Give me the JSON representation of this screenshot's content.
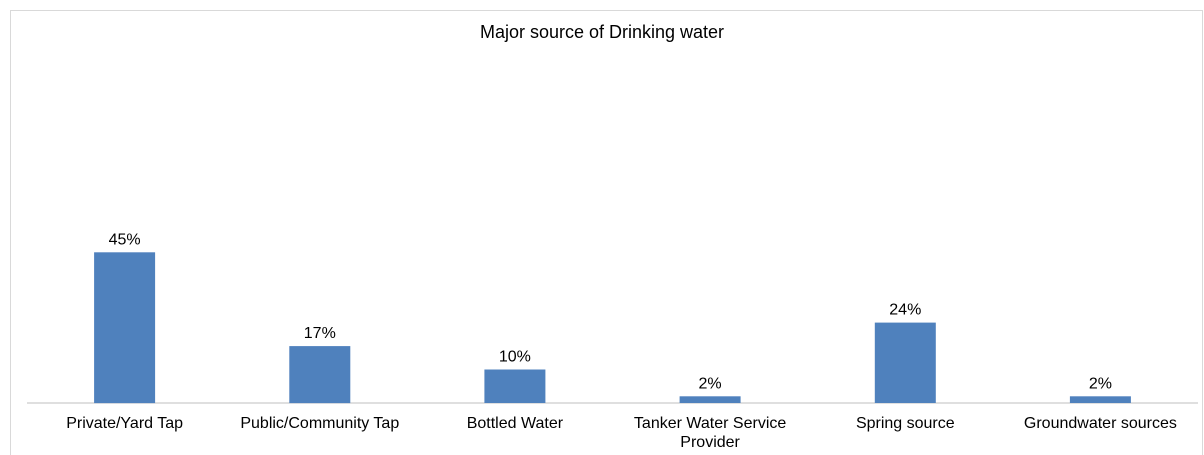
{
  "chart_data": {
    "type": "bar",
    "title": "Major source of Drinking water",
    "categories": [
      [
        "Private/Yard Tap"
      ],
      [
        "Public/Community Tap"
      ],
      [
        "Bottled Water"
      ],
      [
        "Tanker Water Service",
        "Provider"
      ],
      [
        "Spring source"
      ],
      [
        "Groundwater sources"
      ]
    ],
    "values": [
      45,
      17,
      10,
      2,
      24,
      2
    ],
    "data_labels": [
      "45%",
      "17%",
      "10%",
      "2%",
      "24%",
      "2%"
    ],
    "xlabel": "",
    "ylabel": "",
    "ylim": [
      0,
      100
    ],
    "grid": false,
    "legend": "none",
    "colors": {
      "bar": "#4f81bd",
      "axis": "#bfbfbf",
      "frame": "#d9d9d9"
    }
  }
}
